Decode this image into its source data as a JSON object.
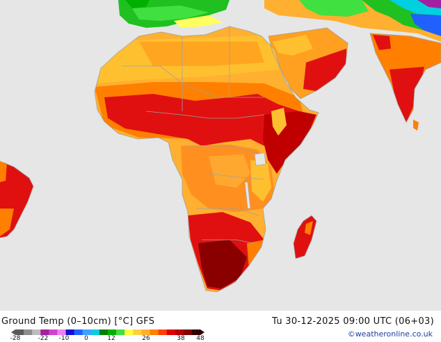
{
  "map": {
    "title": "Ground Temp (0–10cm) [°C] GFS",
    "datetime": "Tu 30-12-2025 09:00 UTC (06+03)",
    "credit": "©weatheronline.co.uk",
    "legend": {
      "ticks": [
        "-28",
        "-22",
        "-10",
        "0",
        "12",
        "26",
        "38",
        "48"
      ],
      "colors": [
        "#5a5a5a",
        "#8c8c8c",
        "#bcbcbc",
        "#a020a0",
        "#d040d0",
        "#f080f0",
        "#1010d0",
        "#2060ff",
        "#40a0ff",
        "#00d0e0",
        "#008000",
        "#00b000",
        "#40e040",
        "#ffff40",
        "#ffd040",
        "#ffb030",
        "#ff8000",
        "#ff4000",
        "#e00000",
        "#b00000",
        "#800000",
        "#300000"
      ]
    },
    "palette": {
      "ocean": "#e6e6e6",
      "border": "#a0a0a0",
      "hot_dark": "#8a0000",
      "hot": "#e01010",
      "orange": "#ff9a20",
      "yellow_orange": "#ffc030",
      "green": "#20c020",
      "cyan": "#00d0d0",
      "blue": "#2060ff"
    }
  }
}
